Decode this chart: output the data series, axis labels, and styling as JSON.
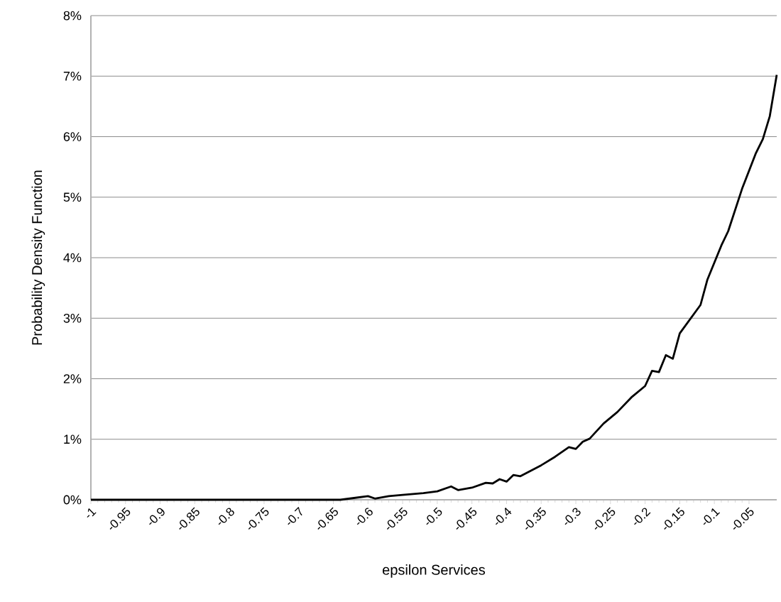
{
  "chart_data": {
    "type": "line",
    "xlabel": "epsilon Services",
    "ylabel": "Probability Density Function",
    "x": [
      -1,
      -0.9,
      -0.8,
      -0.7,
      -0.64,
      -0.6,
      -0.59,
      -0.57,
      -0.55,
      -0.52,
      -0.5,
      -0.48,
      -0.47,
      -0.45,
      -0.43,
      -0.42,
      -0.41,
      -0.4,
      -0.39,
      -0.38,
      -0.35,
      -0.33,
      -0.31,
      -0.3,
      -0.29,
      -0.28,
      -0.26,
      -0.24,
      -0.22,
      -0.2,
      -0.19,
      -0.18,
      -0.17,
      -0.16,
      -0.15,
      -0.12,
      -0.11,
      -0.09,
      -0.08,
      -0.06,
      -0.04,
      -0.03,
      -0.02,
      -0.01
    ],
    "series": [
      {
        "color": "#000000",
        "values": [
          0,
          0,
          0,
          0,
          0,
          0.06,
          0.02,
          0.06,
          0.08,
          0.11,
          0.14,
          0.22,
          0.16,
          0.2,
          0.28,
          0.27,
          0.34,
          0.3,
          0.41,
          0.39,
          0.57,
          0.71,
          0.87,
          0.84,
          0.96,
          1.01,
          1.26,
          1.45,
          1.69,
          1.88,
          2.13,
          2.11,
          2.39,
          2.33,
          2.75,
          3.22,
          3.64,
          4.2,
          4.44,
          5.14,
          5.73,
          5.96,
          6.34,
          7.02
        ]
      }
    ],
    "xlim": [
      -1,
      -0.01
    ],
    "xticks": [
      -1,
      -0.95,
      -0.9,
      -0.85,
      -0.8,
      -0.75,
      -0.7,
      -0.65,
      -0.6,
      -0.55,
      -0.5,
      -0.45,
      -0.4,
      -0.35,
      -0.3,
      -0.25,
      -0.2,
      -0.15,
      -0.1,
      -0.05
    ],
    "ylim": [
      0,
      8
    ],
    "yticks": [
      {
        "value": 0,
        "label": "0%"
      },
      {
        "value": 1,
        "label": "1%"
      },
      {
        "value": 2,
        "label": "2%"
      },
      {
        "value": 3,
        "label": "3%"
      },
      {
        "value": 4,
        "label": "4%"
      },
      {
        "value": 5,
        "label": "5%"
      },
      {
        "value": 6,
        "label": "6%"
      },
      {
        "value": 7,
        "label": "7%"
      },
      {
        "value": 8,
        "label": "8%"
      }
    ],
    "grid": "y"
  }
}
